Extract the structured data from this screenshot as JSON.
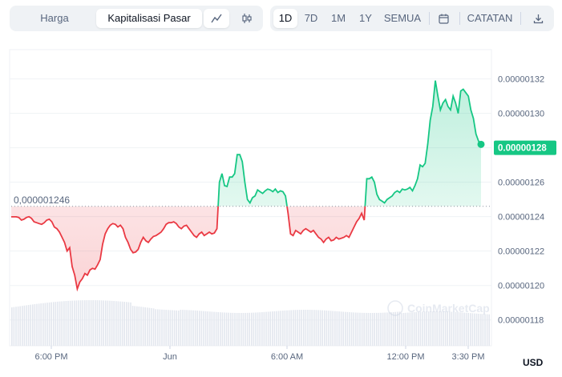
{
  "toolbar": {
    "left_tabs": [
      {
        "label": "Harga",
        "active": false
      },
      {
        "label": "Kapitalisasi Pasar",
        "active": true
      }
    ],
    "chart_icons": [
      "line-chart-icon",
      "candlestick-icon"
    ],
    "ranges": [
      {
        "label": "1D",
        "active": true
      },
      {
        "label": "7D",
        "active": false
      },
      {
        "label": "1M",
        "active": false
      },
      {
        "label": "1Y",
        "active": false
      },
      {
        "label": "SEMUA",
        "active": false
      }
    ],
    "calendar_icon": "calendar-icon",
    "notes_label": "CATATAN",
    "download_icon": "download-icon"
  },
  "chart": {
    "open_label": "0,000001246",
    "current_label": "0.00000128",
    "currency": "USD",
    "watermark": "CoinMarketCap",
    "colors": {
      "up": "#16c784",
      "down": "#ea3943"
    }
  },
  "chart_data": {
    "type": "line",
    "ylim": [
      1.165e-06,
      1.337e-06
    ],
    "open_value": 1.246e-06,
    "current_value": 1.28e-06,
    "y_ticks": [
      "0.00000132",
      "0.00000130",
      "0.00000128",
      "0.00000126",
      "0.00000124",
      "0.00000122",
      "0.00000120",
      "0.00000118"
    ],
    "y_tick_values": [
      1.32e-06,
      1.3e-06,
      1.28e-06,
      1.26e-06,
      1.24e-06,
      1.22e-06,
      1.2e-06,
      1.18e-06
    ],
    "x_ticks": [
      "6:00 PM",
      "Jun",
      "6:00 AM",
      "12:00 PM",
      "3:30 PM"
    ],
    "series": [
      {
        "values": [
          1.2399,
          1.2399,
          1.2399,
          1.2395,
          1.238,
          1.2385,
          1.2395,
          1.24,
          1.239,
          1.237,
          1.2365,
          1.236,
          1.2355,
          1.2365,
          1.238,
          1.2385,
          1.237,
          1.234,
          1.233,
          1.231,
          1.228,
          1.225,
          1.22,
          1.222,
          1.211,
          1.206,
          1.198,
          1.202,
          1.204,
          1.207,
          1.206,
          1.209,
          1.21,
          1.2095,
          1.212,
          1.215,
          1.224,
          1.23,
          1.233,
          1.235,
          1.236,
          1.2355,
          1.234,
          1.235,
          1.233,
          1.228,
          1.225,
          1.221,
          1.219,
          1.2195,
          1.221,
          1.225,
          1.228,
          1.226,
          1.225,
          1.227,
          1.2285,
          1.229,
          1.23,
          1.231,
          1.233,
          1.2355,
          1.2365,
          1.2365,
          1.237,
          1.236,
          1.234,
          1.233,
          1.2345,
          1.235,
          1.233,
          1.231,
          1.229,
          1.228,
          1.23,
          1.231,
          1.229,
          1.23,
          1.231,
          1.23,
          1.2305,
          1.233,
          1.26,
          1.265,
          1.258,
          1.2575,
          1.263,
          1.263,
          1.265,
          1.276,
          1.276,
          1.272,
          1.26,
          1.25,
          1.248,
          1.251,
          1.252,
          1.2555,
          1.2545,
          1.2535,
          1.255,
          1.256,
          1.2555,
          1.2545,
          1.256,
          1.254,
          1.255,
          1.2545,
          1.252,
          1.242,
          1.23,
          1.229,
          1.232,
          1.231,
          1.23,
          1.232,
          1.233,
          1.232,
          1.231,
          1.232,
          1.23,
          1.228,
          1.227,
          1.225,
          1.227,
          1.228,
          1.226,
          1.2265,
          1.228,
          1.227,
          1.2275,
          1.228,
          1.229,
          1.228,
          1.231,
          1.234,
          1.237,
          1.239,
          1.242,
          1.238,
          1.262,
          1.262,
          1.263,
          1.26,
          1.253,
          1.25,
          1.249,
          1.248,
          1.25,
          1.251,
          1.252,
          1.254,
          1.255,
          1.254,
          1.256,
          1.2555,
          1.256,
          1.257,
          1.255,
          1.258,
          1.262,
          1.27,
          1.269,
          1.271,
          1.282,
          1.296,
          1.304,
          1.319,
          1.31,
          1.302,
          1.306,
          1.308,
          1.304,
          1.302,
          1.31,
          1.306,
          1.3,
          1.313,
          1.314,
          1.312,
          1.31,
          1.302,
          1.297,
          1.288,
          1.284,
          1.282
        ]
      }
    ]
  }
}
